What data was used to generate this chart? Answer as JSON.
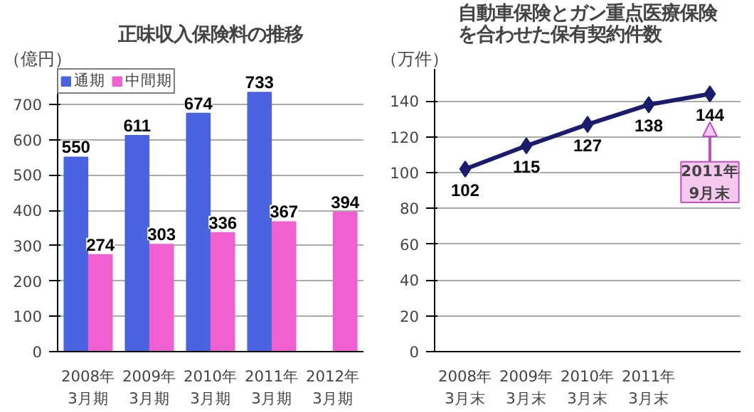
{
  "chart_data": [
    {
      "type": "bar",
      "title": "正味収入保険料の推移",
      "ylabel": "（億円）",
      "categories": [
        "2008年\n3月期",
        "2009年\n3月期",
        "2010年\n3月期",
        "2011年\n3月期",
        "2012年\n3月期"
      ],
      "series": [
        {
          "name": "通期",
          "color": "#4a63e0",
          "values": [
            550,
            611,
            674,
            733,
            null
          ]
        },
        {
          "name": "中間期",
          "color": "#f060d0",
          "values": [
            274,
            303,
            336,
            367,
            394
          ]
        }
      ],
      "ylim": [
        0,
        800
      ],
      "yticks": [
        0,
        100,
        200,
        300,
        400,
        500,
        600,
        700
      ],
      "grid": "y",
      "legend": "top left",
      "data_labels": true
    },
    {
      "type": "line",
      "title": "自動車保険とガン重点医療保険を合わせた保有契約件数",
      "ylabel": "（万件）",
      "categories": [
        "2008年\n3月末",
        "2009年\n3月末",
        "2010年\n3月末",
        "2011年\n3月末",
        null
      ],
      "series": [
        {
          "color": "#1c1c6e",
          "values": [
            102,
            115,
            127,
            138,
            144
          ]
        }
      ],
      "ylim": [
        0,
        158
      ],
      "yticks": [
        0,
        20,
        40,
        60,
        80,
        100,
        120,
        140
      ],
      "grid": "y",
      "marker": "diamond",
      "line_style": "solid",
      "data_labels": true,
      "annotations": [
        "2011年\n9月末"
      ]
    }
  ]
}
